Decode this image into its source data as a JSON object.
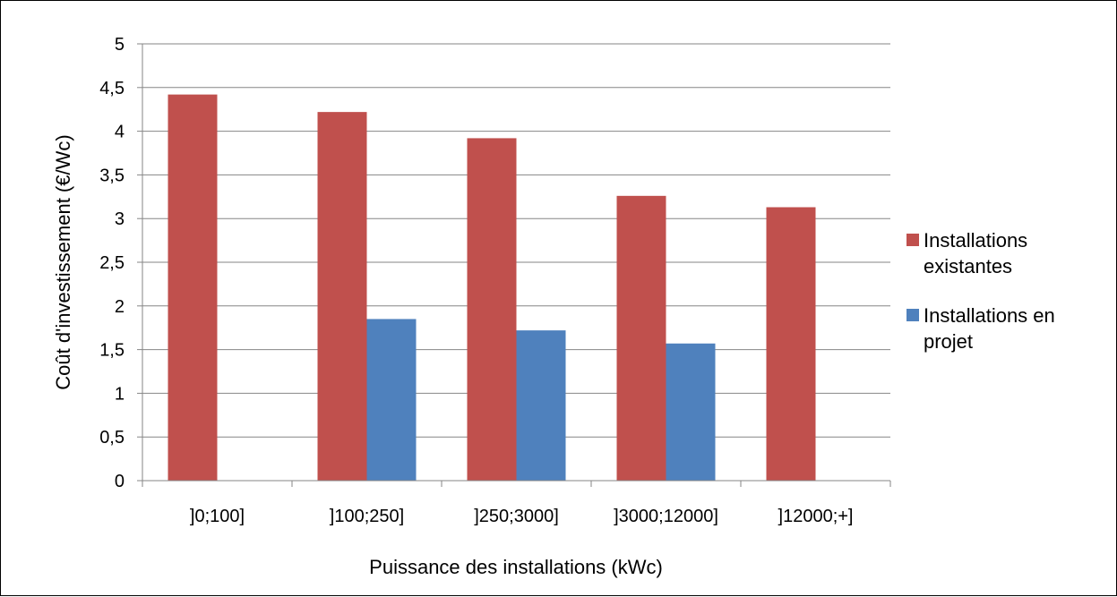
{
  "chart_data": {
    "type": "bar",
    "categories": [
      "]0;100]",
      "]100;250]",
      "]250;3000]",
      "]3000;12000]",
      "]12000;+]"
    ],
    "series": [
      {
        "name": "Installations existantes",
        "legend_lines": [
          "Installations",
          "existantes"
        ],
        "color": "#C0504D",
        "values": [
          4.42,
          4.22,
          3.92,
          3.26,
          3.13
        ]
      },
      {
        "name": "Installations en projet",
        "legend_lines": [
          "Installations en",
          "projet"
        ],
        "color": "#4F81BD",
        "values": [
          null,
          1.85,
          1.72,
          1.57,
          null
        ]
      }
    ],
    "xlabel": "Puissance des installations (kWc)",
    "ylabel": "Coût d'investissement (€/Wc)",
    "ylim": [
      0,
      5
    ],
    "yticks": [
      "0",
      "0,5",
      "1",
      "1,5",
      "2",
      "2,5",
      "3",
      "3,5",
      "4",
      "4,5",
      "5"
    ],
    "grid": true,
    "gridline_color": "#868686",
    "legend_position": "right"
  }
}
